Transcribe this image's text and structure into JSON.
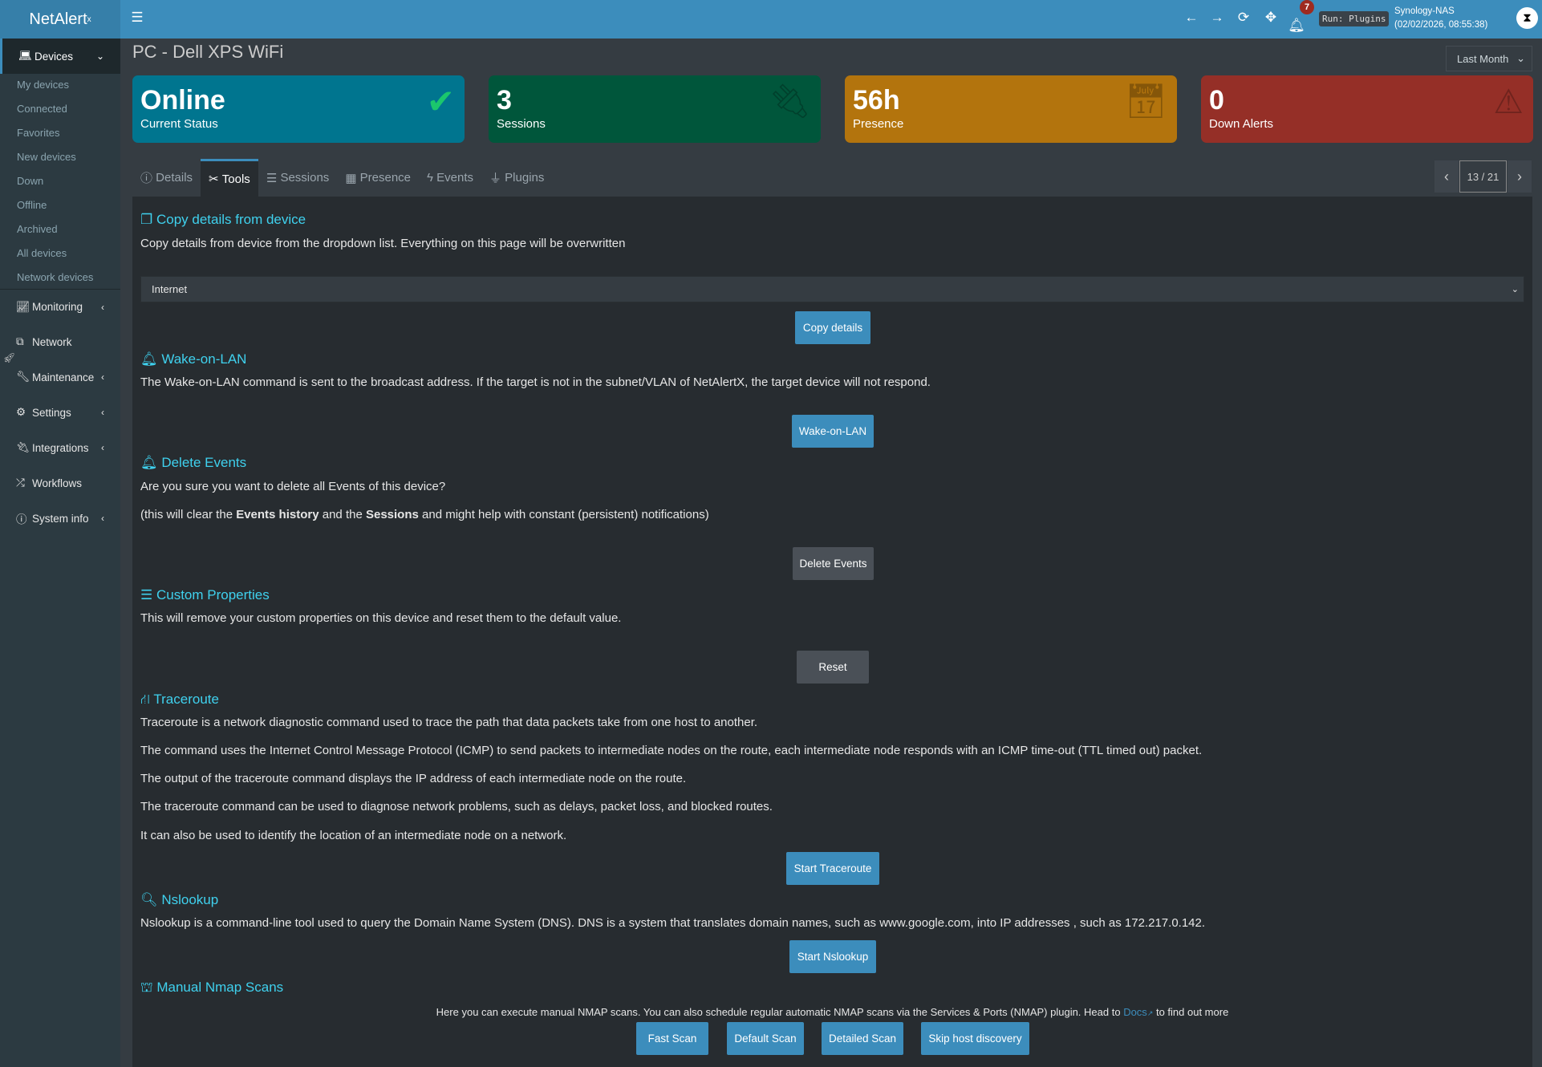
{
  "app": {
    "logo": "NetAlert",
    "logo_sup": "x"
  },
  "header": {
    "notifications": "7",
    "run_status": "Run: Plugins",
    "host": "Synology-NAS",
    "datetime": "(02/02/2026, 08:55:38)"
  },
  "sidebar": {
    "devices": "Devices",
    "sub": [
      "My devices",
      "Connected",
      "Favorites",
      "New devices",
      "Down",
      "Offline",
      "Archived",
      "All devices",
      "Network devices"
    ],
    "main": [
      "Monitoring",
      "Network",
      "Maintenance",
      "Settings",
      "Integrations",
      "Workflows",
      "System info"
    ]
  },
  "page": {
    "title": "PC - Dell XPS WiFi",
    "range": "Last Month"
  },
  "cards": [
    {
      "value": "Online",
      "label": "Current Status",
      "color": "#00758f"
    },
    {
      "value": "3",
      "label": "Sessions",
      "color": "#00563b"
    },
    {
      "value": "56h",
      "label": "Presence",
      "color": "#b3740d"
    },
    {
      "value": "0",
      "label": "Down Alerts",
      "color": "#952f27"
    }
  ],
  "tabs": [
    "Details",
    "Tools",
    "Sessions",
    "Presence",
    "Events",
    "Plugins"
  ],
  "pager": "13 / 21",
  "tools": {
    "copy": {
      "title": "Copy details from device",
      "desc": "Copy details from device from the dropdown list. Everything on this page will be overwritten",
      "selected": "Internet",
      "button": "Copy details"
    },
    "wol": {
      "title": "Wake-on-LAN",
      "desc": "The Wake-on-LAN command is sent to the broadcast address. If the target is not in the subnet/VLAN of NetAlertX, the target device will not respond.",
      "button": "Wake-on-LAN"
    },
    "delete": {
      "title": "Delete Events",
      "question": "Are you sure you want to delete all Events of this device?",
      "note_a": "(this will clear the ",
      "note_b": "Events history",
      "note_c": " and the ",
      "note_d": "Sessions",
      "note_e": " and might help with constant (persistent) notifications)",
      "button": "Delete Events"
    },
    "custom": {
      "title": "Custom Properties",
      "desc": "This will remove your custom properties on this device and reset them to the default value.",
      "button": "Reset"
    },
    "traceroute": {
      "title": "Traceroute",
      "lines": [
        "Traceroute is a network diagnostic command used to trace the path that data packets take from one host to another.",
        "The command uses the Internet Control Message Protocol (ICMP) to send packets to intermediate nodes on the route, each intermediate node responds with an ICMP time-out (TTL timed out) packet.",
        "The output of the traceroute command displays the IP address of each intermediate node on the route.",
        "The traceroute command can be used to diagnose network problems, such as delays, packet loss, and blocked routes.",
        "It can also be used to identify the location of an intermediate node on a network."
      ],
      "button": "Start Traceroute"
    },
    "nslookup": {
      "title": "Nslookup",
      "desc": "Nslookup is a command-line tool used to query the Domain Name System (DNS). DNS is a system that translates domain names, such as www.google.com, into IP addresses , such as 172.217.0.142.",
      "button": "Start Nslookup"
    },
    "nmap": {
      "title": "Manual Nmap Scans",
      "desc": "Here you can execute manual NMAP scans. You can also schedule regular automatic NMAP scans via the Services & Ports (NMAP) plugin. Head to ",
      "docs": "Docs",
      "desc_end": " to find out more",
      "buttons": [
        "Fast Scan",
        "Default Scan",
        "Detailed Scan",
        "Skip host discovery"
      ]
    }
  }
}
